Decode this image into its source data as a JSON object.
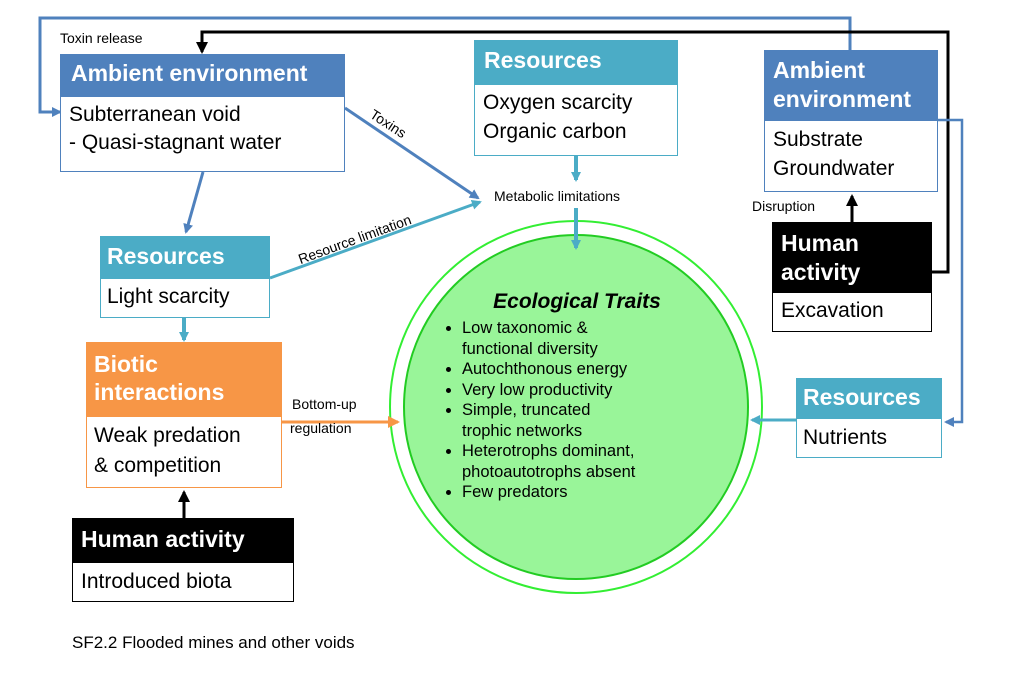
{
  "colors": {
    "ambient": "#4f81bd",
    "resources": "#4bacc6",
    "biotic": "#f79646",
    "human": "#000000",
    "circle_fill": "#99f599",
    "circle_ring": "#33ee33",
    "arrow_blue": "#4f81bd",
    "arrow_teal": "#4bacc6",
    "arrow_orange": "#f79646"
  },
  "boxes": {
    "ambient_left": {
      "header": "Ambient environment",
      "lines": [
        "Subterranean void",
        "- Quasi-stagnant water"
      ]
    },
    "resources_top": {
      "header": "Resources",
      "lines": [
        "Oxygen scarcity",
        "Organic carbon"
      ]
    },
    "ambient_right": {
      "header_lines": [
        "Ambient",
        "environment"
      ],
      "lines": [
        "Substrate",
        "Groundwater"
      ]
    },
    "resources_light": {
      "header": "Resources",
      "lines": [
        "Light scarcity"
      ]
    },
    "biotic": {
      "header_lines": [
        "Biotic",
        "interactions"
      ],
      "lines": [
        "Weak predation",
        "& competition"
      ]
    },
    "human_right": {
      "header_lines": [
        "Human",
        "activity"
      ],
      "lines": [
        "Excavation"
      ]
    },
    "human_bottom": {
      "header": "Human activity",
      "lines": [
        "Introduced biota"
      ]
    },
    "resources_nutrients": {
      "header": "Resources",
      "lines": [
        "Nutrients"
      ]
    }
  },
  "arrow_labels": {
    "toxin_release": "Toxin release",
    "toxins": "Toxins",
    "resource_limitation": "Resource limitation",
    "metabolic_limitations": "Metabolic limitations",
    "disruption": "Disruption",
    "bottom_up_1": "Bottom-up",
    "bottom_up_2": "regulation"
  },
  "traits": {
    "title": "Ecological Traits",
    "items": [
      [
        "Low taxonomic &",
        "functional diversity"
      ],
      [
        "Autochthonous energy"
      ],
      [
        "Very low productivity"
      ],
      [
        "Simple, truncated",
        "trophic networks"
      ],
      [
        "Heterotrophs dominant,",
        "photoautotrophs absent"
      ],
      [
        "Few predators"
      ]
    ]
  },
  "caption": "SF2.2 Flooded mines and other voids"
}
